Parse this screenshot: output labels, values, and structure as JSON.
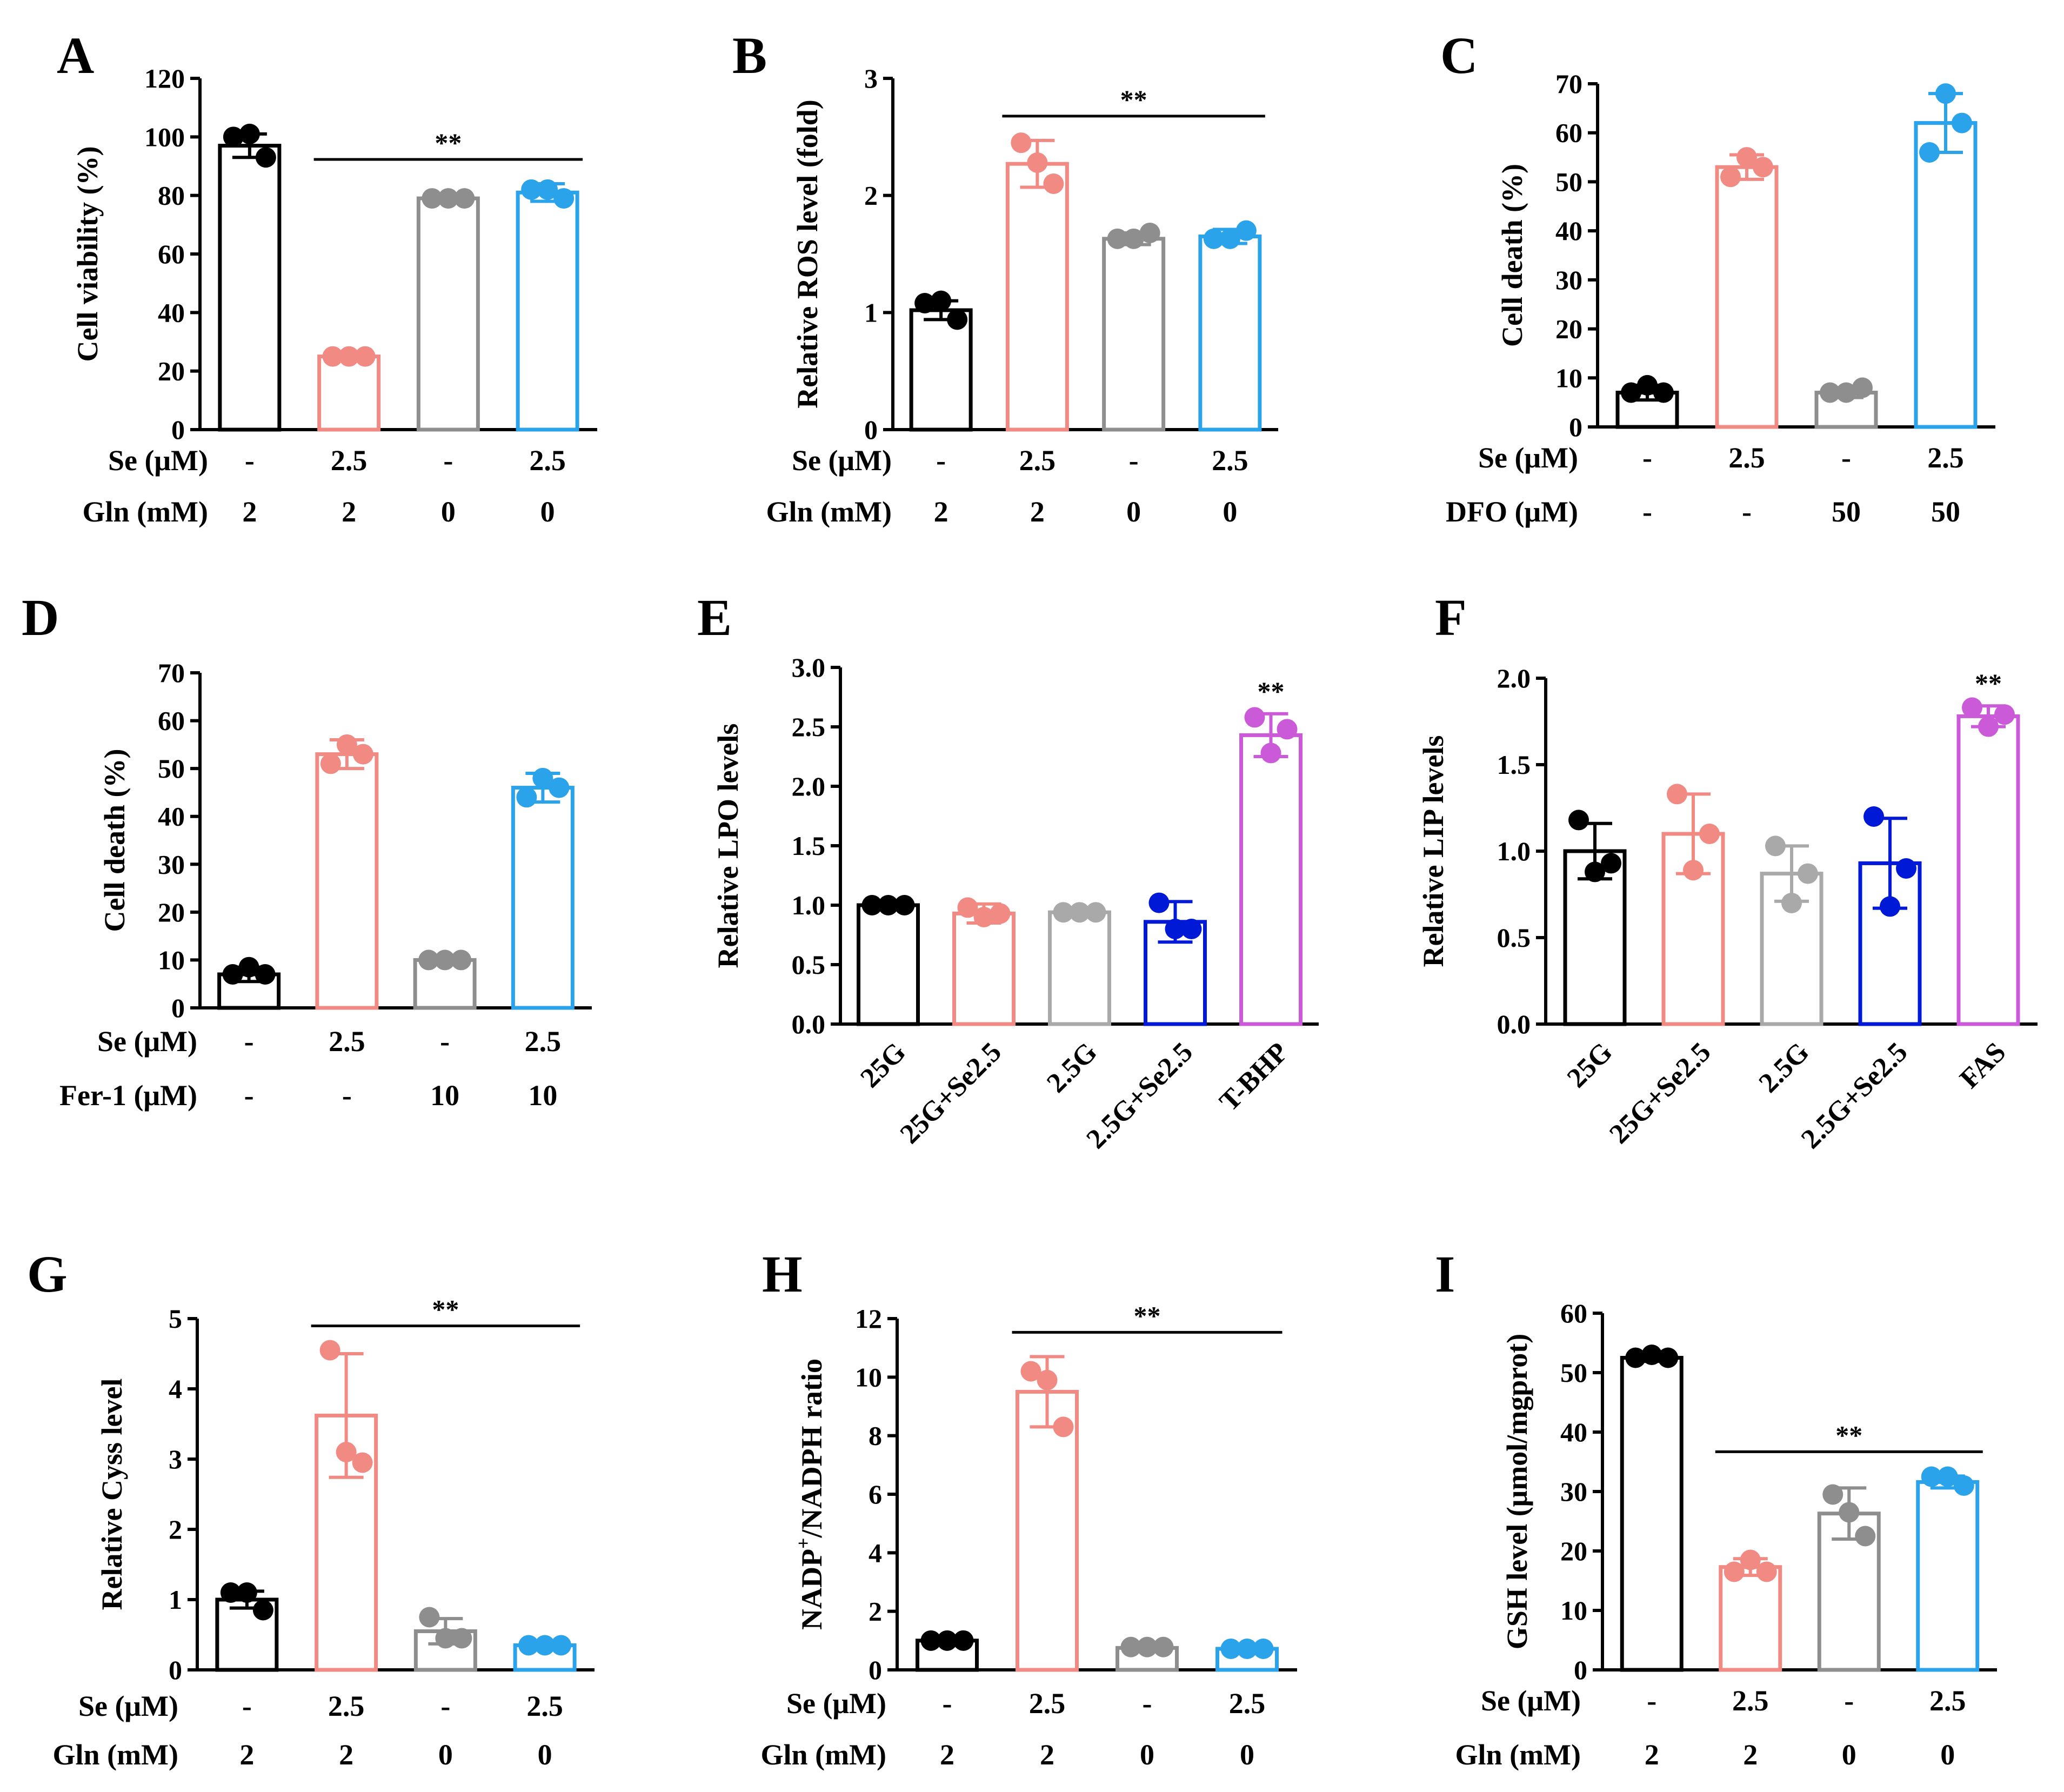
{
  "colors": {
    "black": "#000000",
    "salmon": "#f28a84",
    "gray": "#8e8e8e",
    "lightgray": "#a9a9a9",
    "skyblue": "#2aa3ea",
    "blue": "#0019d6",
    "magenta": "#cb5ad8"
  },
  "chart_data": [
    {
      "panel": "A",
      "type": "bar",
      "ylabel": "Cell viability (%)",
      "ylim": [
        0,
        120
      ],
      "yticks": [
        "0",
        "20",
        "40",
        "60",
        "80",
        "100",
        "120"
      ],
      "values": [
        97,
        25,
        79,
        81
      ],
      "errors": [
        4,
        1,
        1,
        3
      ],
      "points": [
        [
          100,
          101,
          93
        ],
        [
          25,
          25,
          25
        ],
        [
          79,
          79,
          79
        ],
        [
          82,
          82,
          79
        ]
      ],
      "colors": [
        "black",
        "salmon",
        "gray",
        "skyblue"
      ],
      "rows": [
        {
          "label": "Se (μM)",
          "values": [
            "-",
            "2.5",
            "-",
            "2.5"
          ]
        },
        {
          "label": "Gln (mM)",
          "values": [
            "2",
            "2",
            "0",
            "0"
          ]
        }
      ],
      "significance": [
        {
          "from": 1,
          "to": 3,
          "label": "**"
        }
      ]
    },
    {
      "panel": "B",
      "type": "bar",
      "ylabel": "Relative ROS level  (fold)",
      "ylim": [
        0,
        3
      ],
      "yticks": [
        "0",
        "1",
        "2",
        "3"
      ],
      "values": [
        1.02,
        2.27,
        1.63,
        1.65
      ],
      "errors": [
        0.08,
        0.2,
        0.05,
        0.06
      ],
      "points": [
        [
          1.08,
          1.1,
          0.94
        ],
        [
          2.45,
          2.28,
          2.1
        ],
        [
          1.63,
          1.63,
          1.68
        ],
        [
          1.63,
          1.63,
          1.7
        ]
      ],
      "colors": [
        "black",
        "salmon",
        "gray",
        "skyblue"
      ],
      "rows": [
        {
          "label": "Se (μM)",
          "values": [
            "-",
            "2.5",
            "-",
            "2.5"
          ]
        },
        {
          "label": "Gln (mM)",
          "values": [
            "2",
            "2",
            "0",
            "0"
          ]
        }
      ],
      "significance": [
        {
          "from": 1,
          "to": 3,
          "label": "**"
        }
      ]
    },
    {
      "panel": "C",
      "type": "bar",
      "ylabel": "Cell death (%)",
      "ylim": [
        0,
        70
      ],
      "yticks": [
        "0",
        "10",
        "20",
        "30",
        "40",
        "50",
        "60",
        "70"
      ],
      "values": [
        7,
        53,
        7,
        62
      ],
      "errors": [
        1.5,
        2.5,
        1,
        6
      ],
      "points": [
        [
          7,
          8.5,
          7
        ],
        [
          51,
          55,
          53
        ],
        [
          7,
          7,
          8
        ],
        [
          56,
          68,
          62
        ]
      ],
      "colors": [
        "black",
        "salmon",
        "gray",
        "skyblue"
      ],
      "rows": [
        {
          "label": "Se (μM)",
          "values": [
            "-",
            "2.5",
            "-",
            "2.5"
          ]
        },
        {
          "label": "DFO (μM)",
          "values": [
            "-",
            "-",
            "50",
            "50"
          ]
        }
      ],
      "significance": []
    },
    {
      "panel": "D",
      "type": "bar",
      "ylabel": "Cell death (%)",
      "ylim": [
        0,
        70
      ],
      "yticks": [
        "0",
        "10",
        "20",
        "30",
        "40",
        "50",
        "60",
        "70"
      ],
      "values": [
        7,
        53,
        10,
        46
      ],
      "errors": [
        1.5,
        3,
        0.5,
        3
      ],
      "points": [
        [
          7,
          8.5,
          7
        ],
        [
          51,
          55,
          53
        ],
        [
          10,
          10,
          10
        ],
        [
          44,
          48,
          46
        ]
      ],
      "colors": [
        "black",
        "salmon",
        "gray",
        "skyblue"
      ],
      "rows": [
        {
          "label": "Se (μM)",
          "values": [
            "-",
            "2.5",
            "-",
            "2.5"
          ]
        },
        {
          "label": "Fer-1 (μM)",
          "values": [
            "-",
            "-",
            "10",
            "10"
          ]
        }
      ],
      "significance": []
    },
    {
      "panel": "E",
      "type": "bar",
      "ylabel": "Relative LPO levels",
      "ylim": [
        0,
        3.0
      ],
      "yticks": [
        "0.0",
        "0.5",
        "1.0",
        "1.5",
        "2.0",
        "2.5",
        "3.0"
      ],
      "categories": [
        "25G",
        "25G+Se2.5",
        "2.5G",
        "2.5G+Se2.5",
        "T-BHP"
      ],
      "values": [
        1.0,
        0.93,
        0.94,
        0.86,
        2.43
      ],
      "errors": [
        0.02,
        0.08,
        0.02,
        0.17,
        0.18
      ],
      "points": [
        [
          1.0,
          1.0,
          1.0
        ],
        [
          0.98,
          0.9,
          0.93
        ],
        [
          0.94,
          0.94,
          0.94
        ],
        [
          1.02,
          0.8,
          0.8
        ],
        [
          2.58,
          2.28,
          2.48
        ]
      ],
      "colors": [
        "black",
        "salmon",
        "lightgray",
        "blue",
        "magenta"
      ],
      "rows": [],
      "significance": [
        {
          "bar": 4,
          "label": "**"
        }
      ]
    },
    {
      "panel": "F",
      "type": "bar",
      "ylabel": "Relative LIP levels",
      "ylim": [
        0,
        2.0
      ],
      "yticks": [
        "0.0",
        "0.5",
        "1.0",
        "1.5",
        "2.0"
      ],
      "categories": [
        "25G",
        "25G+Se2.5",
        "2.5G",
        "2.5G+Se2.5",
        "FAS"
      ],
      "values": [
        1.0,
        1.1,
        0.87,
        0.93,
        1.78
      ],
      "errors": [
        0.16,
        0.23,
        0.16,
        0.26,
        0.06
      ],
      "points": [
        [
          1.18,
          0.88,
          0.93
        ],
        [
          1.33,
          0.89,
          1.1
        ],
        [
          1.03,
          0.7,
          0.87
        ],
        [
          1.2,
          0.68,
          0.9
        ],
        [
          1.83,
          1.72,
          1.79
        ]
      ],
      "colors": [
        "black",
        "salmon",
        "lightgray",
        "blue",
        "magenta"
      ],
      "rows": [],
      "significance": [
        {
          "bar": 4,
          "label": "**"
        }
      ]
    },
    {
      "panel": "G",
      "type": "bar",
      "ylabel": "Relative Cyss level",
      "ylim": [
        0,
        5
      ],
      "yticks": [
        "0",
        "1",
        "2",
        "3",
        "4",
        "5"
      ],
      "values": [
        1.0,
        3.62,
        0.55,
        0.35
      ],
      "errors": [
        0.12,
        0.88,
        0.18,
        0.05
      ],
      "points": [
        [
          1.1,
          1.1,
          0.85
        ],
        [
          4.55,
          3.1,
          2.95
        ],
        [
          0.75,
          0.45,
          0.45
        ],
        [
          0.35,
          0.35,
          0.35
        ]
      ],
      "colors": [
        "black",
        "salmon",
        "gray",
        "skyblue"
      ],
      "rows": [
        {
          "label": "Se (μM)",
          "values": [
            "-",
            "2.5",
            "-",
            "2.5"
          ]
        },
        {
          "label": "Gln (mM)",
          "values": [
            "2",
            "2",
            "0",
            "0"
          ]
        }
      ],
      "significance": [
        {
          "from": 1,
          "to": 3,
          "label": "**"
        }
      ]
    },
    {
      "panel": "H",
      "type": "bar",
      "ylabel_main": "NADP",
      "ylabel_sup": "+",
      "ylabel_rest": "/NADPH ratio",
      "ylim": [
        0,
        12
      ],
      "yticks": [
        "0",
        "2",
        "4",
        "6",
        "8",
        "10",
        "12"
      ],
      "values": [
        1.0,
        9.5,
        0.75,
        0.72
      ],
      "errors": [
        0.05,
        1.2,
        0.08,
        0.06
      ],
      "points": [
        [
          1.0,
          1.0,
          1.0
        ],
        [
          10.2,
          9.9,
          8.3
        ],
        [
          0.78,
          0.78,
          0.78
        ],
        [
          0.72,
          0.72,
          0.72
        ]
      ],
      "colors": [
        "black",
        "salmon",
        "gray",
        "skyblue"
      ],
      "rows": [
        {
          "label": "Se (μM)",
          "values": [
            "-",
            "2.5",
            "-",
            "2.5"
          ]
        },
        {
          "label": "Gln (mM)",
          "values": [
            "2",
            "2",
            "0",
            "0"
          ]
        }
      ],
      "significance": [
        {
          "from": 1,
          "to": 3,
          "label": "**"
        }
      ]
    },
    {
      "panel": "I",
      "type": "bar",
      "ylabel": "GSH level (μmol/mgprot)",
      "ylim": [
        0,
        60
      ],
      "yticks": [
        "0",
        "10",
        "20",
        "30",
        "40",
        "50",
        "60"
      ],
      "values": [
        52.5,
        17.3,
        26.3,
        31.6
      ],
      "errors": [
        0.6,
        1.4,
        4.3,
        1.0
      ],
      "points": [
        [
          52.5,
          53,
          52.5
        ],
        [
          16.5,
          18.5,
          16.5
        ],
        [
          29.5,
          26.5,
          22.5
        ],
        [
          32.5,
          32.5,
          31
        ]
      ],
      "colors": [
        "black",
        "salmon",
        "gray",
        "skyblue"
      ],
      "rows": [
        {
          "label": "Se (μM)",
          "values": [
            "-",
            "2.5",
            "-",
            "2.5"
          ]
        },
        {
          "label": "Gln (mM)",
          "values": [
            "2",
            "2",
            "0",
            "0"
          ]
        }
      ],
      "significance": [
        {
          "from": 1,
          "to": 3,
          "label": "**"
        }
      ]
    }
  ]
}
